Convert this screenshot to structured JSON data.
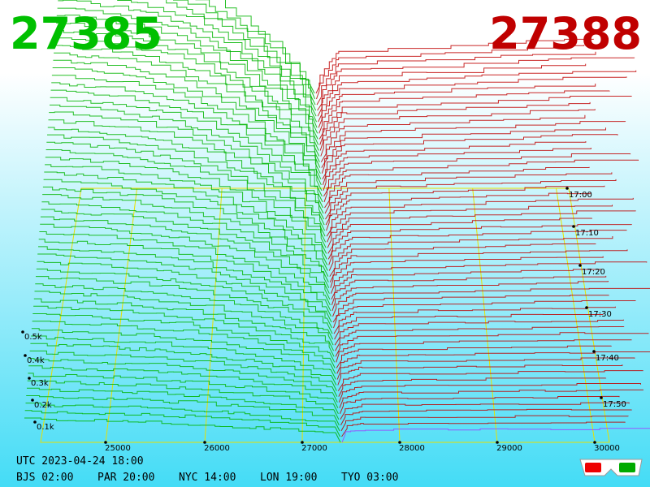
{
  "header": {
    "bid": "27385",
    "ask": "27388"
  },
  "price_axis": {
    "labels": [
      "25000",
      "26000",
      "27000",
      "28000",
      "29000",
      "30000"
    ]
  },
  "depth_axis": {
    "labels": [
      "0.1k",
      "0.2k",
      "0.3k",
      "0.4k",
      "0.5k"
    ]
  },
  "time_axis": {
    "labels": [
      "17:00",
      "17:10",
      "17:20",
      "17:30",
      "17:40",
      "17:50"
    ]
  },
  "footer": {
    "utc": "UTC 2023-04-24 18:00",
    "zones": [
      "BJS 02:00",
      "PAR 20:00",
      "NYC 14:00",
      "LON 19:00",
      "TYO 03:00"
    ]
  }
}
